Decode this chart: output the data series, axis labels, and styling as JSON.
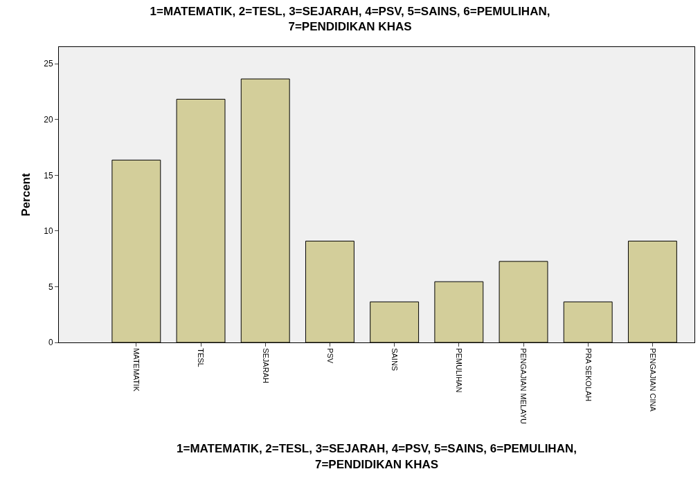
{
  "chart_data": {
    "type": "bar",
    "title": "1=MATEMATIK, 2=TESL, 3=SEJARAH, 4=PSV, 5=SAINS, 6=PEMULIHAN,\n7=PENDIDIKAN KHAS",
    "xlabel": "1=MATEMATIK, 2=TESL, 3=SEJARAH, 4=PSV, 5=SAINS, 6=PEMULIHAN,\n7=PENDIDIKAN KHAS",
    "ylabel": "Percent",
    "categories": [
      "MATEMATIK",
      "TESL",
      "SEJARAH",
      "PSV",
      "SAINS",
      "PEMULIHAN",
      "PENGAJIAN MELAYU",
      "PRA SEKOLAH",
      "PENGAJIAN CINA"
    ],
    "values": [
      16.36,
      21.82,
      23.64,
      9.09,
      3.64,
      5.45,
      7.27,
      3.64,
      9.09
    ],
    "color": "#d3ce9a",
    "ylim": [
      0,
      26.5
    ],
    "yticks": [
      0,
      5,
      10,
      15,
      20,
      25
    ],
    "grid": false
  }
}
